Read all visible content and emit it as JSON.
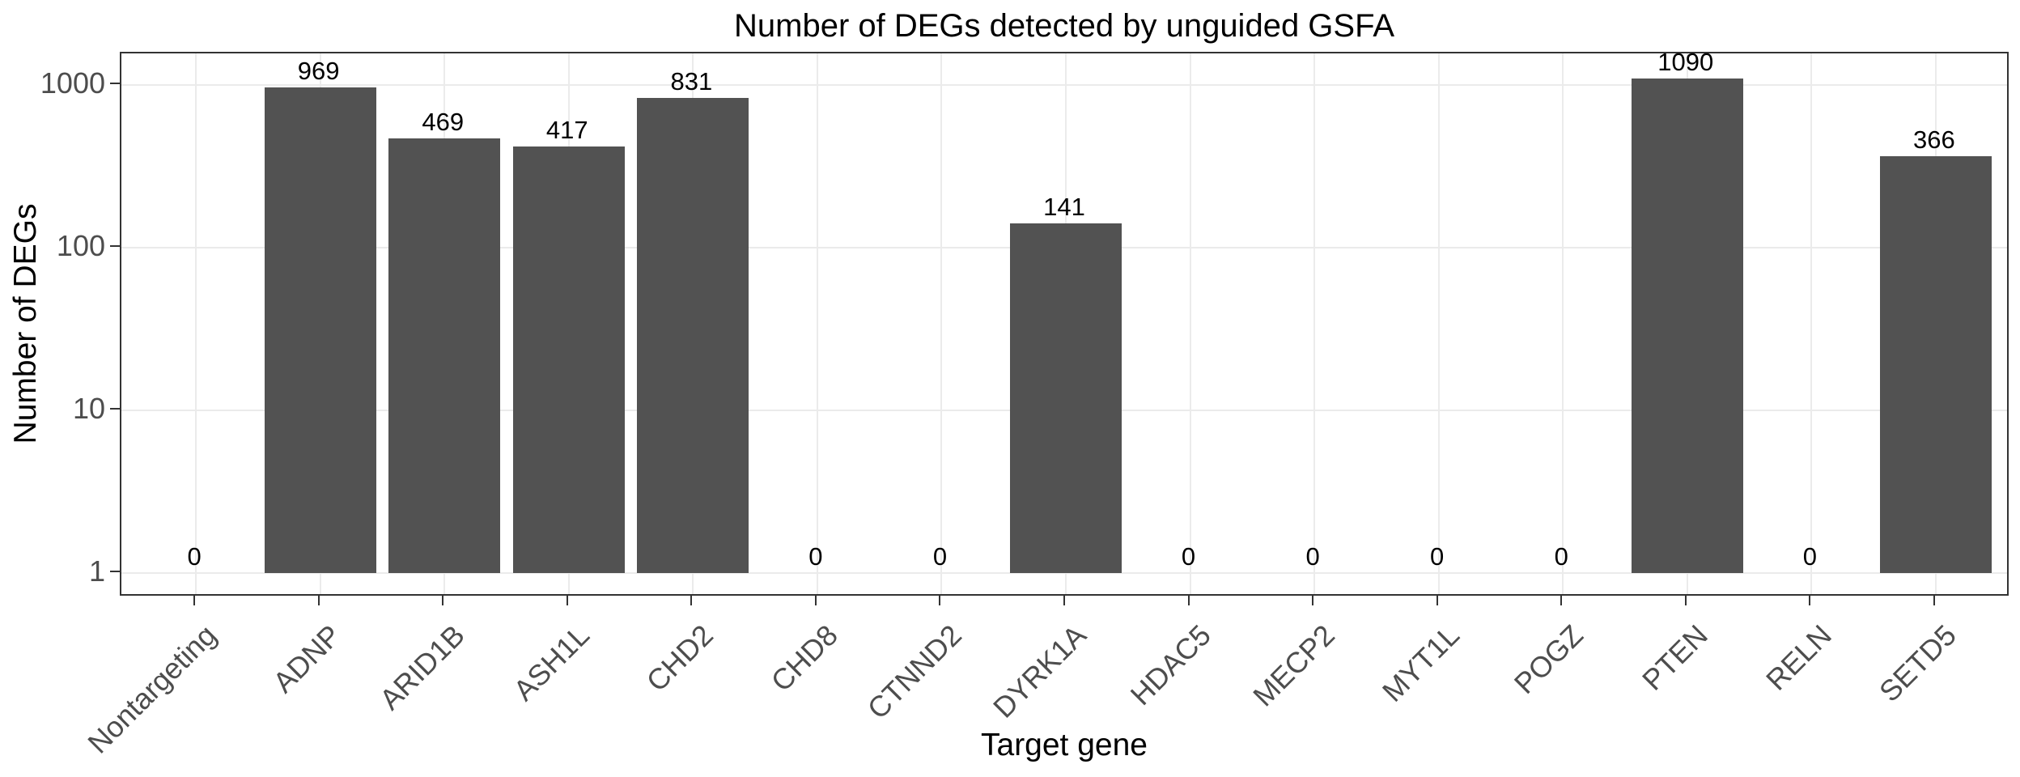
{
  "chart_data": {
    "type": "bar",
    "title": "Number of DEGs detected by unguided GSFA",
    "xlabel": "Target gene",
    "ylabel": "Number of DEGs",
    "categories": [
      "Nontargeting",
      "ADNP",
      "ARID1B",
      "ASH1L",
      "CHD2",
      "CHD8",
      "CTNND2",
      "DYRK1A",
      "HDAC5",
      "MECP2",
      "MYT1L",
      "POGZ",
      "PTEN",
      "RELN",
      "SETD5"
    ],
    "values": [
      0,
      969,
      469,
      417,
      831,
      0,
      0,
      141,
      0,
      0,
      0,
      0,
      1090,
      0,
      366
    ],
    "bar_labels": [
      "0",
      "969",
      "469",
      "417",
      "831",
      "0",
      "0",
      "141",
      "0",
      "0",
      "0",
      "0",
      "1090",
      "0",
      "366"
    ],
    "y_scale": "log10",
    "y_ticks": [
      1,
      10,
      100,
      1000
    ],
    "y_tick_labels": [
      "1",
      "10",
      "100",
      "1000"
    ],
    "ylim_log10": [
      -0.15,
      3.19
    ],
    "grid": "major",
    "legend": "none",
    "colors": {
      "bar_fill": "#525252",
      "gridline": "#ebebeb",
      "panel_border": "#333333",
      "tick_mark": "#333333",
      "tick_text": "#4d4d4d",
      "label_text": "#000000"
    }
  }
}
